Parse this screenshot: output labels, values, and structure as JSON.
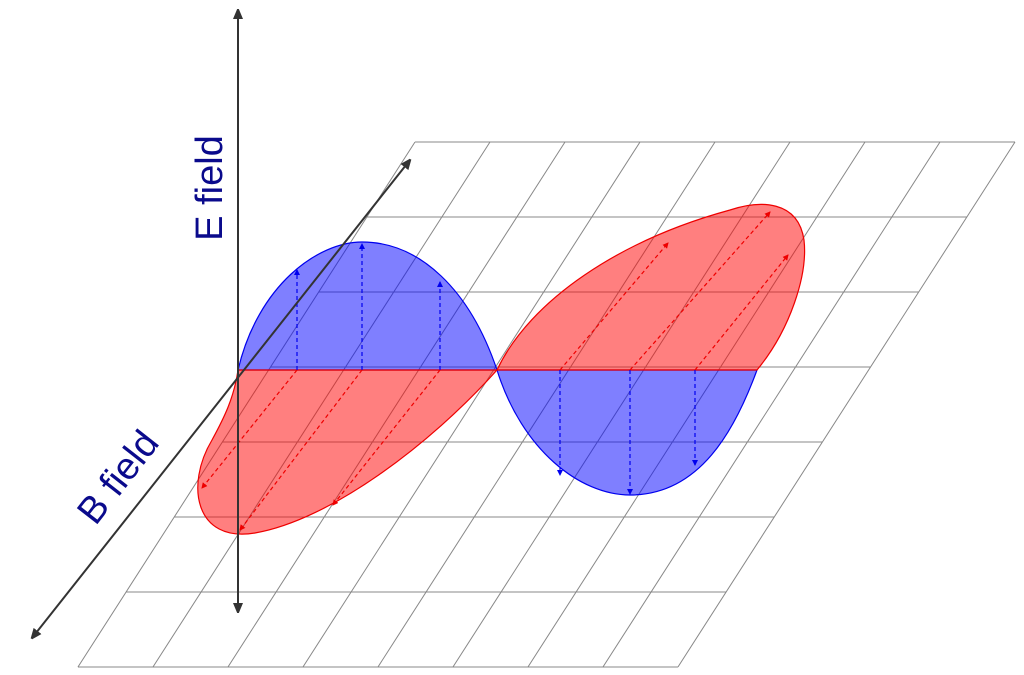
{
  "axes": [
    {
      "label": "E field"
    },
    {
      "label": "B field"
    }
  ]
}
